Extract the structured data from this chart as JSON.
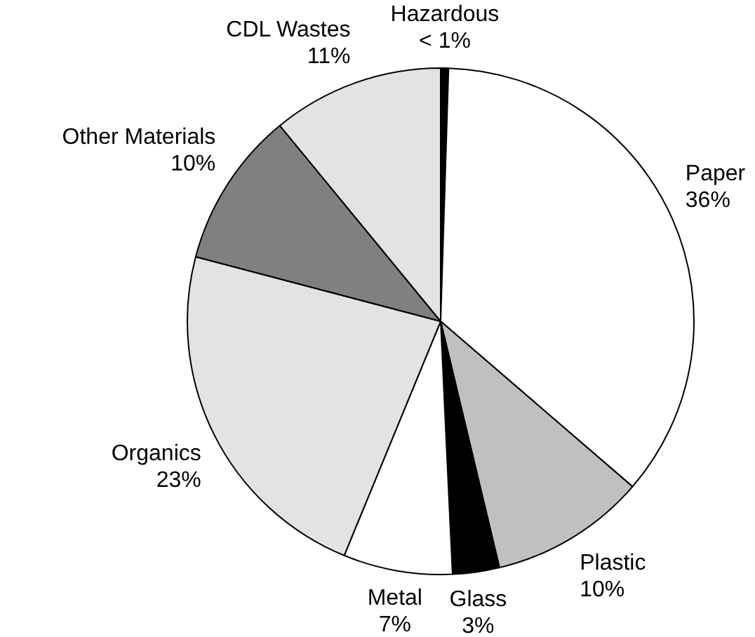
{
  "chart_data": {
    "type": "pie",
    "categories": [
      "Hazardous",
      "Paper",
      "Plastic",
      "Glass",
      "Metal",
      "Organics",
      "Other Materials",
      "CDL Wastes"
    ],
    "values": [
      0.5,
      36,
      10,
      3,
      7,
      23,
      10,
      11
    ],
    "value_labels": [
      "< 1%",
      "36%",
      "10%",
      "3%",
      "7%",
      "23%",
      "10%",
      "11%"
    ],
    "colors": [
      "#000000",
      "#ffffff",
      "#c0c0c0",
      "#000000",
      "#ffffff",
      "#e3e3e3",
      "#808080",
      "#e3e3e3"
    ],
    "legend": false
  }
}
